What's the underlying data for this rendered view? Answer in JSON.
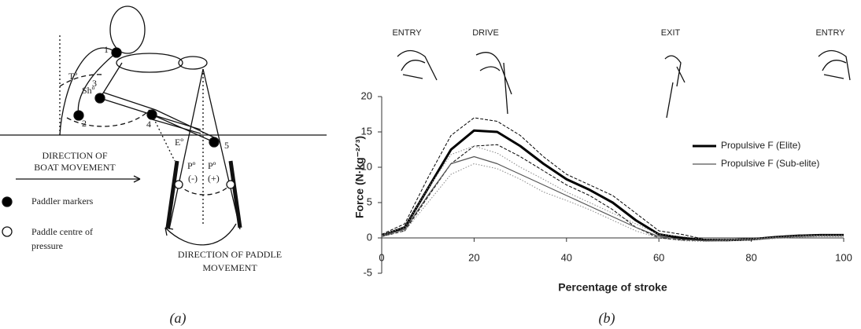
{
  "diagram": {
    "markers": [
      "1",
      "2",
      "3",
      "4",
      "5"
    ],
    "angles": [
      "Tº",
      "Shº",
      "Eº",
      "Pº",
      "(-)",
      "Pº",
      "(+)"
    ],
    "boat_direction": [
      "DIRECTION OF",
      "BOAT MOVEMENT"
    ],
    "legend": [
      "Paddler markers",
      "Paddle centre of",
      "pressure"
    ],
    "paddle_direction": [
      "DIRECTION OF PADDLE",
      "MOVEMENT"
    ],
    "caption": "(a)"
  },
  "chart_data": {
    "type": "line",
    "caption": "(b)",
    "phases": [
      "ENTRY",
      "DRIVE",
      "EXIT",
      "ENTRY"
    ],
    "x_label": "Percentage of stroke",
    "y_label": "Force (N·kg⁻²ᐟ³)",
    "x": [
      0,
      5,
      10,
      15,
      20,
      25,
      30,
      35,
      40,
      45,
      50,
      55,
      60,
      65,
      70,
      75,
      80,
      85,
      90,
      95,
      100
    ],
    "series": [
      {
        "name": "Propulsive F (Elite)",
        "color": "#000000",
        "linestyle": "solid",
        "linewidth": 3,
        "values": [
          0.3,
          1.5,
          7,
          12.5,
          15.2,
          15,
          13,
          10.5,
          8.3,
          6.8,
          5,
          2.5,
          0.5,
          0,
          -0.3,
          -0.3,
          -0.2,
          0.1,
          0.3,
          0.4,
          0.4
        ]
      },
      {
        "color": "#000000",
        "linestyle": "dashed",
        "linewidth": 1,
        "values": [
          0.5,
          2,
          8.5,
          14.5,
          17,
          16.5,
          14.5,
          11.5,
          9,
          7.5,
          6,
          3.5,
          1,
          0.5,
          -0.2,
          -0.2,
          -0.1,
          0.2,
          0.4,
          0.5,
          0.5
        ]
      },
      {
        "color": "#000000",
        "linestyle": "dashed",
        "linewidth": 1,
        "values": [
          0.2,
          1,
          5.8,
          10.5,
          13,
          13.2,
          11.5,
          9.5,
          7.5,
          6,
          4,
          1.5,
          0,
          -0.3,
          -0.4,
          -0.4,
          -0.3,
          0,
          0.2,
          0.3,
          0.3
        ]
      },
      {
        "name": "Propulsive F (Sub-elite)",
        "color": "#555555",
        "linestyle": "solid",
        "linewidth": 1.2,
        "values": [
          0.3,
          1.2,
          6,
          10.5,
          11.5,
          10.5,
          9,
          7.5,
          6,
          4.5,
          3,
          1.5,
          0.2,
          -0.2,
          -0.4,
          -0.3,
          -0.2,
          0,
          0.2,
          0.3,
          0.3
        ]
      },
      {
        "color": "#888888",
        "linestyle": "dotted",
        "linewidth": 1,
        "values": [
          0.4,
          1.5,
          7,
          11.8,
          13,
          12,
          10,
          8.3,
          6.5,
          5,
          3.5,
          2,
          0.5,
          0.2,
          -0.2,
          -0.2,
          -0.1,
          0.1,
          0.3,
          0.4,
          0.4
        ]
      },
      {
        "color": "#888888",
        "linestyle": "dotted",
        "linewidth": 1,
        "values": [
          0.2,
          1,
          5,
          9,
          10.5,
          9.8,
          8.3,
          6.5,
          5.3,
          4,
          2.5,
          1,
          0,
          -0.4,
          -0.5,
          -0.4,
          -0.3,
          -0.1,
          0.1,
          0.2,
          0.2
        ]
      }
    ],
    "xlim": [
      0,
      100
    ],
    "ylim": [
      -5,
      20
    ],
    "xticks": [
      0,
      20,
      40,
      60,
      80,
      100
    ],
    "yticks": [
      -5,
      0,
      5,
      10,
      15,
      20
    ],
    "grid": false
  }
}
